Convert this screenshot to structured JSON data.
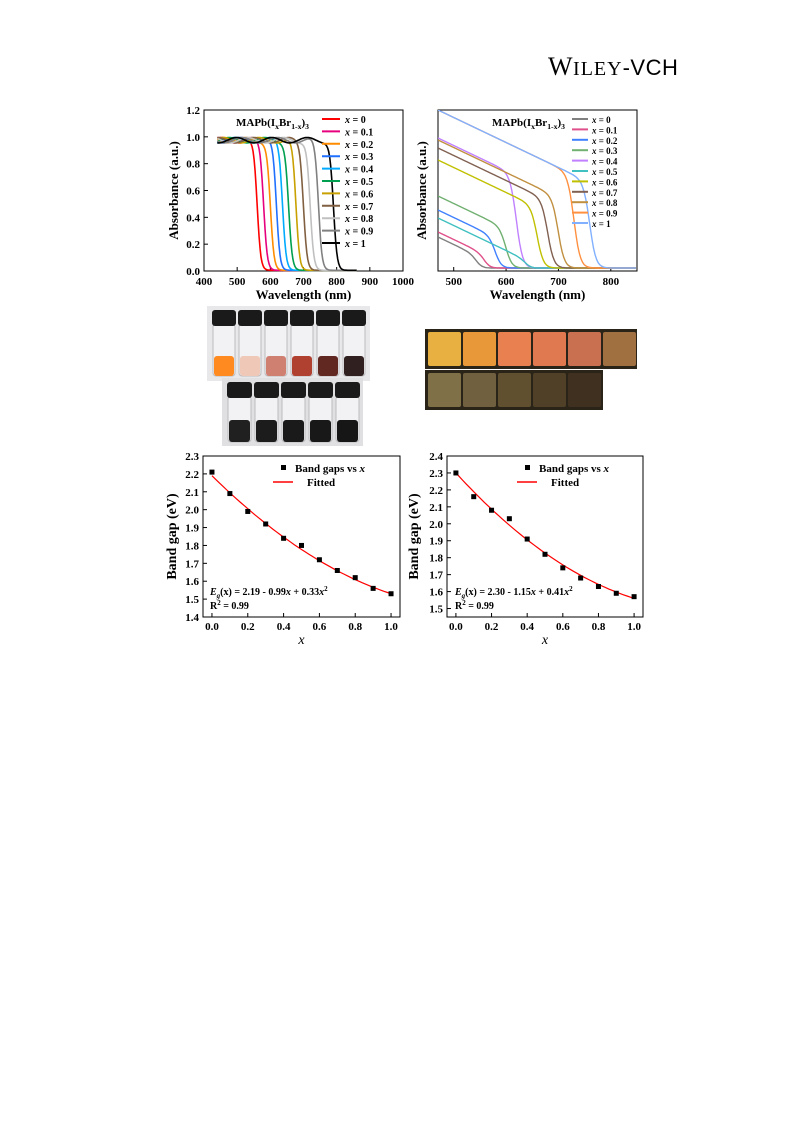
{
  "header": {
    "brand_wiley": "WILEY",
    "brand_vch": "VCH",
    "brand_sep": "-"
  },
  "colors": {
    "series": [
      "#ff0000",
      "#e6007e",
      "#ff8c00",
      "#2070ff",
      "#00aaff",
      "#00a050",
      "#c8a000",
      "#806040",
      "#c0c0c0",
      "#808080",
      "#000000"
    ],
    "series_b": [
      "#808080",
      "#e0508a",
      "#4080ff",
      "#70b070",
      "#c080ff",
      "#40c0c0",
      "#c0c000",
      "#806050",
      "#c09040",
      "#ff9040",
      "#80b0ff"
    ],
    "fit": "#ff0000",
    "marker": "#000000"
  },
  "chart_data": [
    {
      "id": "abs_left",
      "type": "line",
      "title": "MAPb(I",
      "title_sub1": "x",
      "title_mid": "Br",
      "title_sub2": "1-x",
      "title_end": ")",
      "title_sub3": "3",
      "xlabel": "Wavelength (nm)",
      "ylabel": "Absorbance (a.u.)",
      "xlim": [
        400,
        1000
      ],
      "ylim": [
        0,
        1.2
      ],
      "xticks": [
        "400",
        "500",
        "600",
        "700",
        "800",
        "900",
        "1000"
      ],
      "yticks": [
        "0.0",
        "0.2",
        "0.4",
        "0.6",
        "0.8",
        "1.0",
        "1.2"
      ],
      "legend_var": "x",
      "legend_eq": " = ",
      "legend": [
        "0",
        "0.1",
        "0.2",
        "0.3",
        "0.4",
        "0.5",
        "0.6",
        "0.7",
        "0.8",
        "0.9",
        "1"
      ],
      "edges_nm": [
        560,
        580,
        600,
        618,
        637,
        655,
        677,
        700,
        720,
        745,
        790
      ]
    },
    {
      "id": "abs_right",
      "type": "line",
      "title": "MAPb(I",
      "title_sub1": "x",
      "title_mid": "Br",
      "title_sub2": "1-x",
      "title_end": ")",
      "title_sub3": "3",
      "xlabel": "Wavelength (nm)",
      "ylabel": "Absorbance (a.u.)",
      "xlim": [
        470,
        850
      ],
      "xticks": [
        "500",
        "600",
        "700",
        "800"
      ],
      "legend_var": "x",
      "legend_eq": " = ",
      "legend": [
        "0",
        "0.1",
        "0.2",
        "0.3",
        "0.4",
        "0.5",
        "0.6",
        "0.7",
        "0.8",
        "0.9",
        "1"
      ]
    },
    {
      "id": "bg_left",
      "type": "scatter",
      "xlabel": "x",
      "ylabel": "Band gap (eV)",
      "xlim": [
        -0.05,
        1.05
      ],
      "ylim": [
        1.4,
        2.3
      ],
      "xticks": [
        "0.0",
        "0.2",
        "0.4",
        "0.6",
        "0.8",
        "1.0"
      ],
      "xtick_values": [
        0,
        0.2,
        0.4,
        0.6,
        0.8,
        1.0
      ],
      "yticks": [
        "1.4",
        "1.5",
        "1.6",
        "1.7",
        "1.8",
        "1.9",
        "2.0",
        "2.1",
        "2.2",
        "2.3"
      ],
      "ytick_values": [
        1.4,
        1.5,
        1.6,
        1.7,
        1.8,
        1.9,
        2.0,
        2.1,
        2.2,
        2.3
      ],
      "x": [
        0,
        0.1,
        0.2,
        0.3,
        0.4,
        0.5,
        0.6,
        0.7,
        0.8,
        0.9,
        1.0
      ],
      "y": [
        2.21,
        2.09,
        1.99,
        1.92,
        1.84,
        1.8,
        1.72,
        1.66,
        1.62,
        1.56,
        1.53
      ],
      "fit": [
        2.19,
        -0.99,
        0.33
      ],
      "legend_points": "Band gaps vs ",
      "legend_points_var": "x",
      "legend_fit": "Fitted",
      "eq_E": "E",
      "eq_sub": "g",
      "eq_mid": "(x) = 2.19 - 0.99",
      "eq_x": "x",
      "eq_tail": " + 0.33",
      "eq_x2": "x",
      "eq_sup": "2",
      "r2_a": "R",
      "r2_sup": "2",
      "r2_b": " = 0.99"
    },
    {
      "id": "bg_right",
      "type": "scatter",
      "xlabel": "x",
      "ylabel": "Band gap (eV)",
      "xlim": [
        -0.05,
        1.05
      ],
      "ylim": [
        1.45,
        2.4
      ],
      "xticks": [
        "0.0",
        "0.2",
        "0.4",
        "0.6",
        "0.8",
        "1.0"
      ],
      "xtick_values": [
        0,
        0.2,
        0.4,
        0.6,
        0.8,
        1.0
      ],
      "yticks": [
        "1.5",
        "1.6",
        "1.7",
        "1.8",
        "1.9",
        "2.0",
        "2.1",
        "2.2",
        "2.3",
        "2.4"
      ],
      "ytick_values": [
        1.5,
        1.6,
        1.7,
        1.8,
        1.9,
        2.0,
        2.1,
        2.2,
        2.3,
        2.4
      ],
      "x": [
        0,
        0.1,
        0.2,
        0.3,
        0.4,
        0.5,
        0.6,
        0.7,
        0.8,
        0.9,
        1.0
      ],
      "y": [
        2.3,
        2.16,
        2.08,
        2.03,
        1.91,
        1.82,
        1.74,
        1.68,
        1.63,
        1.59,
        1.57
      ],
      "fit": [
        2.3,
        -1.15,
        0.41
      ],
      "legend_points": "Band gaps vs ",
      "legend_points_var": "x",
      "legend_fit": "Fitted",
      "eq_E": "E",
      "eq_sub": "g",
      "eq_mid": "(x) = 2.30 - 1.15",
      "eq_x": "x",
      "eq_tail": " + 0.41",
      "eq_x2": "x",
      "eq_sup": "2",
      "r2_a": "R",
      "r2_sup": "2",
      "r2_b": " = 0.99"
    }
  ],
  "photos": {
    "vials_top": [
      "#ff8a20",
      "#f0c8b8",
      "#d08070",
      "#b04030",
      "#602820",
      "#302020"
    ],
    "vials_bottom": [
      "#202020",
      "#1c1c1c",
      "#1a1a1a",
      "#181818",
      "#161616"
    ],
    "films_row1": [
      "#e8b040",
      "#e89838",
      "#e88050",
      "#e07850",
      "#c87050",
      "#a07040"
    ],
    "films_row2": [
      "#807048",
      "#706040",
      "#605030",
      "#504028",
      "#403020"
    ]
  }
}
